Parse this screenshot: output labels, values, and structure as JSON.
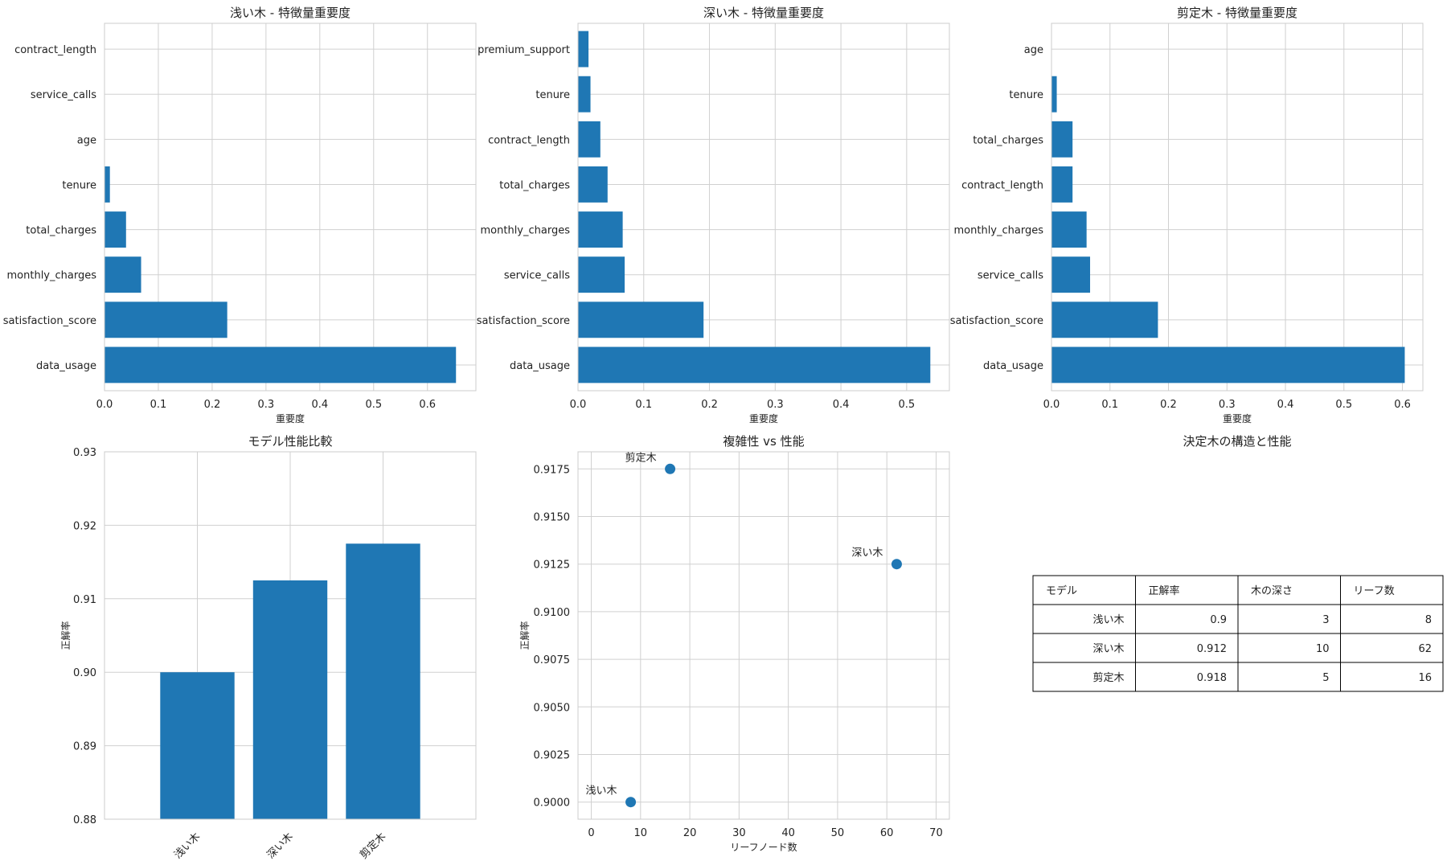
{
  "colors": {
    "bar": "#1f77b4",
    "grid": "#d0d0d0",
    "spine": "#cccccc",
    "text": "#222222"
  },
  "chart_data": [
    {
      "type": "bar",
      "orientation": "horizontal",
      "title": "浅い木 - 特徴量重要度",
      "xlabel": "重要度",
      "ylabel": "",
      "categories": [
        "data_usage",
        "satisfaction_score",
        "monthly_charges",
        "total_charges",
        "tenure",
        "age",
        "service_calls",
        "contract_length"
      ],
      "values": [
        0.653,
        0.228,
        0.068,
        0.04,
        0.01,
        0.0,
        0.0,
        0.0
      ],
      "xlim": [
        0,
        0.69
      ],
      "xticks": [
        0.0,
        0.1,
        0.2,
        0.3,
        0.4,
        0.5,
        0.6
      ],
      "grid": true
    },
    {
      "type": "bar",
      "orientation": "horizontal",
      "title": "深い木 - 特徴量重要度",
      "xlabel": "重要度",
      "ylabel": "",
      "categories": [
        "data_usage",
        "satisfaction_score",
        "service_calls",
        "monthly_charges",
        "total_charges",
        "contract_length",
        "tenure",
        "premium_support"
      ],
      "values": [
        0.536,
        0.191,
        0.071,
        0.068,
        0.045,
        0.034,
        0.019,
        0.016
      ],
      "xlim": [
        0,
        0.565
      ],
      "xticks": [
        0.0,
        0.1,
        0.2,
        0.3,
        0.4,
        0.5
      ],
      "grid": true
    },
    {
      "type": "bar",
      "orientation": "horizontal",
      "title": "剪定木 - 特徴量重要度",
      "xlabel": "重要度",
      "ylabel": "",
      "categories": [
        "data_usage",
        "satisfaction_score",
        "service_calls",
        "monthly_charges",
        "contract_length",
        "total_charges",
        "tenure",
        "age"
      ],
      "values": [
        0.604,
        0.182,
        0.066,
        0.06,
        0.036,
        0.036,
        0.009,
        0.0
      ],
      "xlim": [
        0,
        0.635
      ],
      "xticks": [
        0.0,
        0.1,
        0.2,
        0.3,
        0.4,
        0.5,
        0.6
      ],
      "grid": true
    },
    {
      "type": "bar",
      "title": "モデル性能比較",
      "xlabel": "",
      "ylabel": "正解率",
      "categories": [
        "浅い木",
        "深い木",
        "剪定木"
      ],
      "values": [
        0.9,
        0.9125,
        0.9175
      ],
      "ylim": [
        0.88,
        0.93
      ],
      "yticks": [
        "0.88",
        "0.89",
        "0.90",
        "0.91",
        "0.92",
        "0.93"
      ],
      "grid": true
    },
    {
      "type": "scatter",
      "title": "複雑性 vs 性能",
      "xlabel": "リーフノード数",
      "ylabel": "正解率",
      "points": [
        {
          "label": "浅い木",
          "x": 8,
          "y": 0.9
        },
        {
          "label": "深い木",
          "x": 62,
          "y": 0.9125
        },
        {
          "label": "剪定木",
          "x": 16,
          "y": 0.9175
        }
      ],
      "xlim": [
        -2.7,
        72.7
      ],
      "ylim": [
        0.8991,
        0.9184
      ],
      "xticks": [
        0,
        10,
        20,
        30,
        40,
        50,
        60,
        70
      ],
      "yticks": [
        "0.9000",
        "0.9025",
        "0.9050",
        "0.9075",
        "0.9100",
        "0.9125",
        "0.9150",
        "0.9175"
      ],
      "grid": true
    },
    {
      "type": "table",
      "title": "決定木の構造と性能",
      "columns": [
        "モデル",
        "正解率",
        "木の深さ",
        "リーフ数"
      ],
      "rows": [
        [
          "浅い木",
          "0.9",
          "3",
          "8"
        ],
        [
          "深い木",
          "0.912",
          "10",
          "62"
        ],
        [
          "剪定木",
          "0.918",
          "5",
          "16"
        ]
      ]
    }
  ]
}
